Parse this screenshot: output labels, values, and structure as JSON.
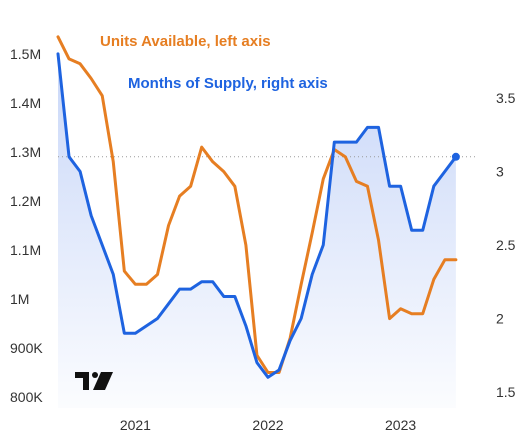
{
  "chart_data": {
    "type": "line",
    "title": "",
    "series": [
      {
        "name": "Units Available, left axis",
        "axis": "left",
        "color": "#E67E22",
        "points": [
          [
            "2020-06",
            1.535
          ],
          [
            "2020-07",
            1.49
          ],
          [
            "2020-08",
            1.48
          ],
          [
            "2020-09",
            1.45
          ],
          [
            "2020-10",
            1.415
          ],
          [
            "2020-11",
            1.28
          ],
          [
            "2020-12",
            1.057
          ],
          [
            "2021-01",
            1.03
          ],
          [
            "2021-02",
            1.03
          ],
          [
            "2021-03",
            1.05
          ],
          [
            "2021-04",
            1.15
          ],
          [
            "2021-05",
            1.21
          ],
          [
            "2021-06",
            1.23
          ],
          [
            "2021-07",
            1.31
          ],
          [
            "2021-08",
            1.28
          ],
          [
            "2021-09",
            1.26
          ],
          [
            "2021-10",
            1.23
          ],
          [
            "2021-11",
            1.11
          ],
          [
            "2021-12",
            0.885
          ],
          [
            "2022-01",
            0.85
          ],
          [
            "2022-02",
            0.85
          ],
          [
            "2022-03",
            0.92
          ],
          [
            "2022-04",
            1.03
          ],
          [
            "2022-05",
            1.135
          ],
          [
            "2022-06",
            1.245
          ],
          [
            "2022-07",
            1.305
          ],
          [
            "2022-08",
            1.29
          ],
          [
            "2022-09",
            1.24
          ],
          [
            "2022-10",
            1.23
          ],
          [
            "2022-11",
            1.12
          ],
          [
            "2022-12",
            0.96
          ],
          [
            "2023-01",
            0.98
          ],
          [
            "2023-02",
            0.97
          ],
          [
            "2023-03",
            0.97
          ],
          [
            "2023-04",
            1.04
          ],
          [
            "2023-05",
            1.08
          ],
          [
            "2023-06",
            1.08
          ]
        ]
      },
      {
        "name": "Months of Supply, right axis",
        "axis": "right",
        "color": "#1E63E0",
        "points": [
          [
            "2020-06",
            3.8
          ],
          [
            "2020-07",
            3.1
          ],
          [
            "2020-08",
            3.0
          ],
          [
            "2020-09",
            2.7
          ],
          [
            "2020-10",
            2.5
          ],
          [
            "2020-11",
            2.3
          ],
          [
            "2020-12",
            1.9
          ],
          [
            "2021-01",
            1.9
          ],
          [
            "2021-02",
            1.95
          ],
          [
            "2021-03",
            2.0
          ],
          [
            "2021-04",
            2.1
          ],
          [
            "2021-05",
            2.2
          ],
          [
            "2021-06",
            2.2
          ],
          [
            "2021-07",
            2.25
          ],
          [
            "2021-08",
            2.25
          ],
          [
            "2021-09",
            2.15
          ],
          [
            "2021-10",
            2.15
          ],
          [
            "2021-11",
            1.95
          ],
          [
            "2021-12",
            1.7
          ],
          [
            "2022-01",
            1.6
          ],
          [
            "2022-02",
            1.65
          ],
          [
            "2022-03",
            1.85
          ],
          [
            "2022-04",
            2.0
          ],
          [
            "2022-05",
            2.3
          ],
          [
            "2022-06",
            2.5
          ],
          [
            "2022-07",
            3.2
          ],
          [
            "2022-08",
            3.2
          ],
          [
            "2022-09",
            3.2
          ],
          [
            "2022-10",
            3.3
          ],
          [
            "2022-11",
            3.3
          ],
          [
            "2022-12",
            2.9
          ],
          [
            "2023-01",
            2.9
          ],
          [
            "2023-02",
            2.6
          ],
          [
            "2023-03",
            2.6
          ],
          [
            "2023-04",
            2.9
          ],
          [
            "2023-05",
            3.0
          ],
          [
            "2023-06",
            3.1
          ]
        ]
      }
    ],
    "x_axis": {
      "range": [
        "2020-06",
        "2023-08"
      ],
      "ticks": [
        {
          "label": "2021",
          "value": "2021-01"
        },
        {
          "label": "2022",
          "value": "2022-01"
        },
        {
          "label": "2023",
          "value": "2023-01"
        }
      ]
    },
    "left_axis": {
      "ylim": [
        0.8,
        1.55
      ],
      "ticks": [
        {
          "label": "1.5M",
          "value": 1.5
        },
        {
          "label": "1.4M",
          "value": 1.4
        },
        {
          "label": "1.3M",
          "value": 1.3
        },
        {
          "label": "1.2M",
          "value": 1.2
        },
        {
          "label": "1.1M",
          "value": 1.1
        },
        {
          "label": "1M",
          "value": 1.0
        },
        {
          "label": "900K",
          "value": 0.9
        },
        {
          "label": "800K",
          "value": 0.8
        }
      ]
    },
    "right_axis": {
      "ylim": [
        1.5,
        3.95
      ],
      "ticks": [
        {
          "label": "3.5",
          "value": 3.5
        },
        {
          "label": "3",
          "value": 3.0
        },
        {
          "label": "2.5",
          "value": 2.5
        },
        {
          "label": "2",
          "value": 2.0
        },
        {
          "label": "1.5",
          "value": 1.5
        }
      ]
    },
    "grid": false,
    "legend_placement": "top-left, inside plot",
    "last_value_line": true,
    "area_fill_series": "Months of Supply, right axis"
  },
  "watermark_logo": "TV"
}
